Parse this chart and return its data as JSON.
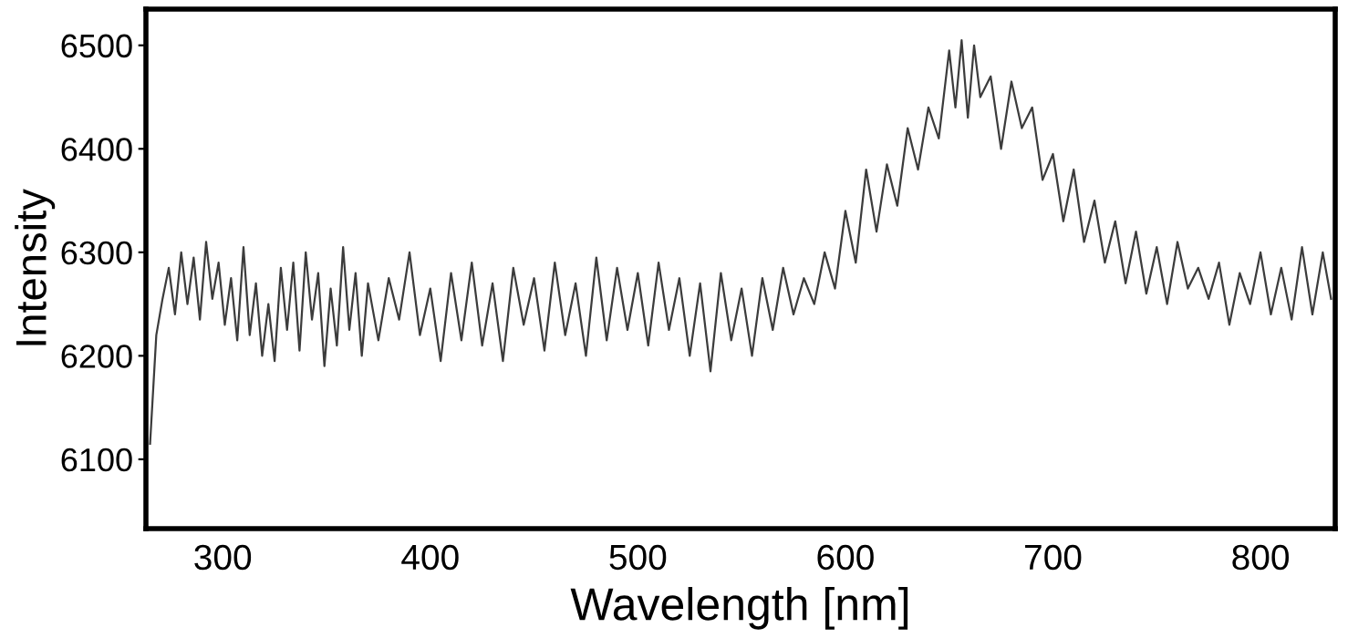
{
  "chart_data": {
    "type": "line",
    "xlabel": "Wavelength [nm]",
    "ylabel": "Intensity",
    "xlim": [
      263,
      836
    ],
    "ylim": [
      6033,
      6535
    ],
    "xticks": [
      300,
      400,
      500,
      600,
      700,
      800
    ],
    "yticks": [
      6100,
      6200,
      6300,
      6400,
      6500
    ],
    "grid": false,
    "legend": false,
    "marker": "none",
    "line_style": "solid",
    "series": [
      {
        "color": "#3c3c3c",
        "x": [
          265,
          268,
          271,
          274,
          277,
          280,
          283,
          286,
          289,
          292,
          295,
          298,
          301,
          304,
          307,
          310,
          313,
          316,
          319,
          322,
          325,
          328,
          331,
          334,
          337,
          340,
          343,
          346,
          349,
          352,
          355,
          358,
          361,
          364,
          367,
          370,
          375,
          380,
          385,
          390,
          395,
          400,
          405,
          410,
          415,
          420,
          425,
          430,
          435,
          440,
          445,
          450,
          455,
          460,
          465,
          470,
          475,
          480,
          485,
          490,
          495,
          500,
          505,
          510,
          515,
          520,
          525,
          530,
          535,
          540,
          545,
          550,
          555,
          560,
          565,
          570,
          575,
          580,
          585,
          590,
          595,
          600,
          605,
          610,
          615,
          620,
          625,
          630,
          635,
          640,
          645,
          650,
          653,
          656,
          659,
          662,
          665,
          670,
          675,
          680,
          685,
          690,
          695,
          700,
          705,
          710,
          715,
          720,
          725,
          730,
          735,
          740,
          745,
          750,
          755,
          760,
          765,
          770,
          775,
          780,
          785,
          790,
          795,
          800,
          805,
          810,
          815,
          820,
          825,
          830,
          834
        ],
        "values": [
          6115,
          6220,
          6255,
          6285,
          6240,
          6300,
          6250,
          6295,
          6235,
          6310,
          6255,
          6290,
          6230,
          6275,
          6215,
          6305,
          6220,
          6270,
          6200,
          6250,
          6195,
          6285,
          6225,
          6290,
          6205,
          6300,
          6235,
          6280,
          6190,
          6265,
          6210,
          6305,
          6225,
          6280,
          6200,
          6270,
          6215,
          6275,
          6235,
          6300,
          6220,
          6265,
          6195,
          6280,
          6215,
          6290,
          6210,
          6270,
          6195,
          6285,
          6230,
          6275,
          6205,
          6290,
          6220,
          6270,
          6200,
          6295,
          6215,
          6285,
          6225,
          6280,
          6210,
          6290,
          6225,
          6275,
          6200,
          6270,
          6185,
          6280,
          6215,
          6265,
          6200,
          6275,
          6225,
          6285,
          6240,
          6275,
          6250,
          6300,
          6265,
          6340,
          6290,
          6380,
          6320,
          6385,
          6345,
          6420,
          6380,
          6440,
          6410,
          6495,
          6440,
          6505,
          6430,
          6500,
          6450,
          6470,
          6400,
          6465,
          6420,
          6440,
          6370,
          6395,
          6330,
          6380,
          6310,
          6350,
          6290,
          6330,
          6270,
          6320,
          6260,
          6305,
          6250,
          6310,
          6265,
          6285,
          6255,
          6290,
          6230,
          6280,
          6250,
          6300,
          6240,
          6285,
          6235,
          6305,
          6240,
          6300,
          6255
        ]
      }
    ]
  }
}
